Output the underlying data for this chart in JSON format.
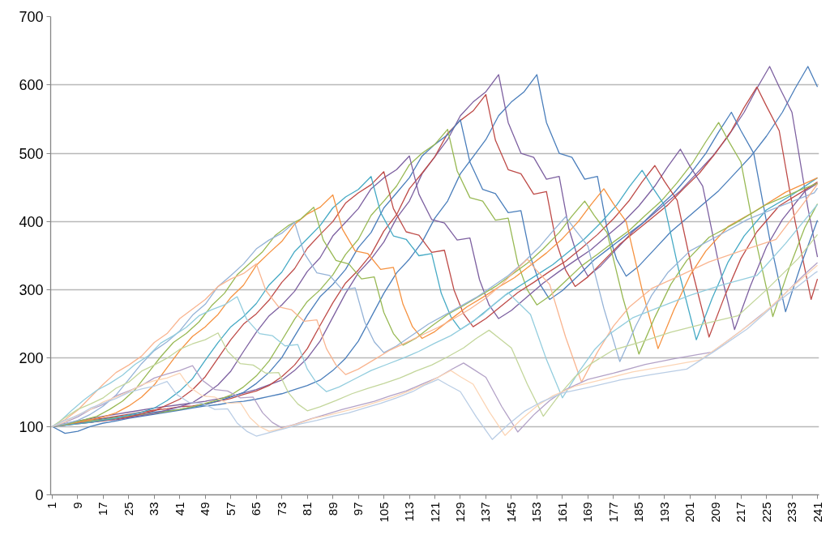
{
  "chart_data": {
    "type": "line",
    "xlim": [
      0.5,
      241.5
    ],
    "ylim": [
      0,
      700
    ],
    "xticks": [
      1,
      9,
      17,
      25,
      33,
      41,
      49,
      57,
      65,
      73,
      81,
      89,
      97,
      105,
      113,
      121,
      129,
      137,
      145,
      153,
      161,
      169,
      177,
      185,
      193,
      201,
      209,
      217,
      225,
      233,
      241
    ],
    "yticks": [
      0,
      100,
      200,
      300,
      400,
      500,
      600,
      700
    ],
    "grid": "y",
    "series": [
      {
        "color": "#4a7ebb",
        "x": [
          1,
          5,
          9,
          13,
          17,
          21,
          25,
          29,
          33,
          37,
          41,
          45,
          49,
          53,
          57,
          61,
          65,
          69,
          73,
          77,
          81,
          85,
          89,
          93,
          97,
          101,
          105,
          109,
          113,
          117,
          121,
          125,
          129,
          133,
          137,
          141,
          145,
          149,
          153,
          156,
          160,
          164,
          168,
          172,
          175,
          178,
          181,
          185,
          190,
          195,
          200,
          205,
          210,
          215,
          220,
          225,
          230,
          234,
          238,
          241
        ],
        "values": [
          100,
          90,
          93,
          100,
          105,
          108,
          112,
          115,
          118,
          121,
          124,
          127,
          130,
          132,
          135,
          137,
          140,
          144,
          148,
          154,
          160,
          168,
          182,
          200,
          225,
          260,
          295,
          325,
          345,
          370,
          405,
          430,
          470,
          495,
          520,
          555,
          575,
          590,
          615,
          545,
          500,
          494,
          462,
          466,
          390,
          345,
          320,
          335,
          360,
          385,
          405,
          425,
          445,
          470,
          495,
          525,
          560,
          595,
          627,
          597
        ]
      },
      {
        "color": "#7d60a0",
        "x": [
          1,
          9,
          17,
          25,
          33,
          41,
          49,
          57,
          65,
          73,
          77,
          81,
          85,
          89,
          93,
          97,
          101,
          105,
          109,
          113,
          117,
          121,
          125,
          129,
          133,
          137,
          141,
          144,
          148,
          152,
          156,
          160,
          163,
          166,
          169,
          173,
          178,
          183,
          188,
          193,
          198,
          203,
          208,
          213,
          218,
          222,
          226,
          229,
          233,
          238,
          241
        ],
        "values": [
          100,
          108,
          115,
          121,
          127,
          132,
          137,
          144,
          154,
          168,
          182,
          200,
          225,
          260,
          295,
          325,
          345,
          370,
          405,
          430,
          470,
          495,
          520,
          555,
          575,
          590,
          615,
          545,
          500,
          494,
          462,
          466,
          390,
          345,
          320,
          335,
          360,
          385,
          405,
          425,
          445,
          470,
          495,
          525,
          560,
          595,
          627,
          597,
          560,
          420,
          348
        ]
      },
      {
        "color": "#be4b48",
        "x": [
          1,
          5,
          9,
          13,
          17,
          21,
          25,
          29,
          33,
          37,
          41,
          45,
          49,
          53,
          57,
          61,
          65,
          69,
          73,
          77,
          81,
          85,
          89,
          93,
          97,
          101,
          105,
          109,
          113,
          117,
          121,
          125,
          129,
          133,
          137,
          140,
          144,
          148,
          152,
          156,
          159,
          162,
          165,
          169,
          174,
          179,
          184,
          189,
          194,
          199,
          204,
          209,
          214,
          218,
          222,
          225,
          229,
          234,
          239,
          241
        ],
        "values": [
          100,
          103,
          107,
          110,
          112,
          115,
          118,
          121,
          124,
          126,
          129,
          130,
          133,
          137,
          141,
          147,
          152,
          160,
          173,
          190,
          214,
          248,
          281,
          310,
          329,
          352,
          386,
          410,
          448,
          471,
          495,
          529,
          548,
          562,
          586,
          519,
          476,
          470,
          440,
          444,
          371,
          329,
          305,
          319,
          343,
          367,
          386,
          405,
          424,
          448,
          471,
          500,
          533,
          567,
          597,
          569,
          533,
          400,
          286,
          316
        ]
      },
      {
        "color": "#4a7ebb",
        "x": [
          1,
          9,
          17,
          25,
          33,
          41,
          49,
          57,
          61,
          65,
          69,
          73,
          77,
          81,
          85,
          89,
          93,
          97,
          101,
          105,
          109,
          113,
          117,
          121,
          125,
          129,
          132,
          136,
          140,
          144,
          148,
          151,
          154,
          157,
          161,
          166,
          171,
          176,
          181,
          186,
          191,
          196,
          201,
          206,
          210,
          214,
          217,
          221,
          226,
          231,
          236,
          241
        ],
        "values": [
          100,
          105,
          111,
          116,
          121,
          125,
          132,
          143,
          150,
          163,
          179,
          201,
          232,
          263,
          290,
          308,
          330,
          362,
          384,
          420,
          442,
          464,
          496,
          513,
          527,
          549,
          487,
          447,
          441,
          413,
          416,
          348,
          308,
          286,
          299,
          321,
          344,
          362,
          380,
          397,
          420,
          442,
          469,
          500,
          531,
          560,
          533,
          500,
          375,
          268,
          339,
          402
        ]
      },
      {
        "color": "#98b954",
        "x": [
          1,
          5,
          9,
          13,
          17,
          21,
          25,
          29,
          33,
          37,
          41,
          45,
          49,
          53,
          57,
          61,
          65,
          69,
          73,
          77,
          81,
          85,
          89,
          93,
          97,
          101,
          105,
          109,
          113,
          117,
          121,
          125,
          128,
          132,
          136,
          140,
          144,
          147,
          150,
          153,
          157,
          162,
          167,
          172,
          177,
          182,
          187,
          192,
          197,
          202,
          206,
          210,
          213,
          217,
          222,
          227,
          232,
          237,
          241
        ],
        "values": [
          100,
          103,
          105,
          108,
          110,
          113,
          115,
          117,
          119,
          122,
          125,
          129,
          134,
          139,
          146,
          158,
          174,
          196,
          226,
          257,
          283,
          300,
          322,
          352,
          374,
          409,
          430,
          452,
          483,
          500,
          513,
          535,
          474,
          435,
          430,
          402,
          405,
          339,
          300,
          278,
          291,
          313,
          335,
          352,
          370,
          387,
          409,
          430,
          457,
          487,
          517,
          545,
          519,
          487,
          365,
          261,
          330,
          391,
          426
        ]
      },
      {
        "color": "#7d60a0",
        "x": [
          1,
          5,
          9,
          13,
          17,
          21,
          25,
          29,
          33,
          37,
          41,
          45,
          49,
          53,
          57,
          61,
          65,
          69,
          73,
          77,
          81,
          85,
          89,
          93,
          97,
          101,
          105,
          109,
          113,
          116,
          120,
          124,
          128,
          132,
          135,
          138,
          141,
          145,
          150,
          155,
          160,
          165,
          170,
          175,
          180,
          185,
          190,
          194,
          198,
          201,
          205,
          210,
          215,
          220,
          225,
          230,
          237,
          241
        ],
        "values": [
          100,
          102,
          105,
          106,
          109,
          110,
          113,
          116,
          119,
          124,
          129,
          135,
          147,
          161,
          181,
          210,
          238,
          262,
          278,
          298,
          327,
          347,
          379,
          399,
          419,
          448,
          464,
          476,
          496,
          440,
          403,
          398,
          373,
          376,
          315,
          278,
          258,
          270,
          290,
          310,
          327,
          343,
          359,
          379,
          399,
          423,
          452,
          480,
          506,
          481,
          452,
          339,
          242,
          306,
          363,
          403,
          444,
          456
        ]
      },
      {
        "color": "#be4b48",
        "x": [
          1,
          9,
          17,
          25,
          33,
          41,
          45,
          49,
          53,
          57,
          61,
          65,
          69,
          73,
          77,
          81,
          85,
          89,
          93,
          97,
          101,
          105,
          108,
          112,
          116,
          120,
          124,
          127,
          130,
          133,
          137,
          142,
          147,
          152,
          157,
          162,
          167,
          172,
          177,
          182,
          186,
          190,
          193,
          197,
          202,
          207,
          212,
          217,
          222,
          229,
          237,
          241
        ],
        "values": [
          100,
          104,
          108,
          114,
          123,
          140,
          154,
          173,
          200,
          227,
          250,
          265,
          285,
          311,
          331,
          361,
          381,
          400,
          427,
          442,
          454,
          473,
          419,
          385,
          380,
          355,
          358,
          300,
          265,
          246,
          258,
          277,
          296,
          311,
          327,
          342,
          361,
          381,
          404,
          431,
          458,
          482,
          459,
          431,
          323,
          231,
          292,
          346,
          385,
          423,
          446,
          458
        ]
      },
      {
        "color": "#46aac5",
        "x": [
          1,
          5,
          9,
          13,
          17,
          21,
          25,
          29,
          33,
          37,
          41,
          45,
          49,
          53,
          57,
          61,
          65,
          69,
          73,
          77,
          81,
          85,
          89,
          93,
          97,
          101,
          104,
          108,
          112,
          116,
          120,
          123,
          126,
          129,
          133,
          138,
          143,
          148,
          153,
          158,
          163,
          168,
          173,
          178,
          182,
          186,
          189,
          193,
          198,
          203,
          208,
          213,
          218,
          225,
          233,
          241
        ],
        "values": [
          100,
          102,
          104,
          106,
          109,
          112,
          117,
          121,
          127,
          138,
          152,
          170,
          197,
          223,
          246,
          261,
          280,
          307,
          326,
          356,
          375,
          394,
          420,
          436,
          447,
          466,
          413,
          379,
          374,
          350,
          353,
          295,
          261,
          242,
          254,
          273,
          292,
          307,
          322,
          337,
          356,
          375,
          398,
          424,
          451,
          475,
          452,
          424,
          318,
          227,
          288,
          341,
          379,
          417,
          439,
          464
        ]
      },
      {
        "color": "#f69240",
        "x": [
          1,
          5,
          9,
          13,
          17,
          21,
          25,
          29,
          33,
          37,
          41,
          45,
          49,
          53,
          57,
          61,
          65,
          69,
          73,
          77,
          81,
          85,
          89,
          92,
          96,
          100,
          104,
          108,
          111,
          114,
          117,
          121,
          126,
          131,
          136,
          141,
          146,
          151,
          156,
          161,
          166,
          170,
          174,
          177,
          181,
          186,
          191,
          196,
          201,
          206,
          213,
          221,
          231,
          241
        ],
        "values": [
          100,
          103,
          106,
          110,
          114,
          120,
          130,
          143,
          161,
          186,
          211,
          232,
          246,
          264,
          289,
          307,
          336,
          354,
          371,
          396,
          411,
          421,
          439,
          389,
          357,
          353,
          330,
          333,
          279,
          246,
          229,
          239,
          257,
          275,
          289,
          304,
          318,
          336,
          354,
          375,
          400,
          425,
          448,
          426,
          400,
          300,
          214,
          271,
          321,
          357,
          393,
          414,
          443,
          464
        ]
      },
      {
        "color": "#98b954",
        "x": [
          1,
          7,
          11,
          15,
          19,
          23,
          27,
          31,
          35,
          39,
          43,
          47,
          51,
          55,
          59,
          63,
          67,
          71,
          75,
          79,
          83,
          86,
          90,
          94,
          98,
          102,
          105,
          108,
          111,
          115,
          120,
          125,
          130,
          135,
          140,
          145,
          150,
          155,
          160,
          164,
          168,
          171,
          175,
          180,
          185,
          190,
          195,
          200,
          207,
          215,
          225,
          235,
          241
        ],
        "values": [
          100,
          105,
          110,
          115,
          125,
          137,
          154,
          178,
          202,
          223,
          236,
          253,
          277,
          295,
          322,
          339,
          356,
          380,
          394,
          404,
          421,
          373,
          343,
          338,
          316,
          319,
          267,
          236,
          219,
          229,
          247,
          264,
          277,
          291,
          305,
          322,
          339,
          360,
          384,
          408,
          430,
          409,
          384,
          288,
          206,
          260,
          308,
          343,
          377,
          397,
          425,
          445,
          456
        ]
      },
      {
        "color": "#95b3d7",
        "x": [
          1,
          5,
          9,
          13,
          17,
          21,
          25,
          29,
          33,
          37,
          41,
          45,
          49,
          53,
          57,
          61,
          65,
          69,
          73,
          77,
          80,
          84,
          88,
          92,
          96,
          99,
          102,
          105,
          109,
          114,
          119,
          124,
          129,
          134,
          139,
          144,
          149,
          154,
          158,
          162,
          165,
          169,
          174,
          179,
          184,
          189,
          194,
          201,
          209,
          219,
          229,
          240,
          241
        ],
        "values": [
          100,
          104,
          109,
          118,
          130,
          146,
          169,
          192,
          211,
          224,
          240,
          263,
          279,
          305,
          321,
          338,
          360,
          373,
          383,
          399,
          354,
          325,
          321,
          300,
          303,
          253,
          224,
          208,
          218,
          234,
          250,
          263,
          276,
          289,
          305,
          321,
          341,
          364,
          386,
          407,
          388,
          364,
          273,
          195,
          247,
          292,
          325,
          357,
          377,
          403,
          422,
          442,
          449
        ]
      },
      {
        "color": "#f9b590",
        "x": [
          1,
          5,
          9,
          13,
          17,
          21,
          25,
          29,
          33,
          37,
          41,
          45,
          49,
          53,
          57,
          61,
          65,
          68,
          72,
          76,
          80,
          84,
          87,
          90,
          93,
          97,
          102,
          107,
          112,
          117,
          122,
          127,
          132,
          137,
          142,
          146,
          150,
          153,
          157,
          162,
          167,
          172,
          177,
          182,
          189,
          197,
          207,
          217,
          228,
          237,
          241
        ],
        "values": [
          100,
          110,
          124,
          143,
          162,
          179,
          190,
          203,
          223,
          236,
          258,
          272,
          286,
          305,
          316,
          324,
          338,
          299,
          275,
          271,
          254,
          256,
          214,
          190,
          176,
          184,
          198,
          212,
          223,
          234,
          245,
          258,
          272,
          288,
          308,
          327,
          345,
          328,
          308,
          231,
          165,
          209,
          247,
          275,
          302,
          319,
          341,
          357,
          374,
          429,
          455
        ]
      },
      {
        "color": "#93cdde",
        "x": [
          1,
          3,
          7,
          11,
          15,
          19,
          23,
          27,
          31,
          35,
          39,
          43,
          47,
          51,
          55,
          59,
          62,
          66,
          70,
          74,
          78,
          81,
          84,
          87,
          91,
          96,
          101,
          106,
          111,
          116,
          121,
          126,
          131,
          136,
          140,
          144,
          147,
          151,
          156,
          161,
          166,
          171,
          176,
          183,
          191,
          201,
          211,
          222,
          231,
          241
        ],
        "values": [
          100,
          106,
          123,
          139,
          153,
          163,
          175,
          191,
          203,
          222,
          233,
          245,
          262,
          271,
          278,
          290,
          257,
          236,
          233,
          218,
          220,
          184,
          163,
          151,
          158,
          170,
          182,
          191,
          200,
          210,
          222,
          233,
          248,
          264,
          281,
          296,
          282,
          264,
          198,
          142,
          179,
          212,
          236,
          259,
          274,
          292,
          307,
          321,
          368,
          425
        ]
      },
      {
        "color": "#c3d69b",
        "x": [
          1,
          5,
          9,
          13,
          17,
          21,
          25,
          29,
          33,
          37,
          41,
          45,
          49,
          53,
          56,
          60,
          64,
          68,
          72,
          75,
          78,
          81,
          85,
          90,
          95,
          100,
          105,
          110,
          115,
          120,
          125,
          130,
          134,
          138,
          141,
          145,
          150,
          155,
          160,
          165,
          170,
          177,
          185,
          195,
          205,
          216,
          225,
          235,
          241
        ],
        "values": [
          100,
          113,
          125,
          133,
          142,
          156,
          165,
          181,
          190,
          200,
          213,
          221,
          227,
          237,
          210,
          192,
          190,
          178,
          179,
          150,
          133,
          123,
          129,
          138,
          148,
          156,
          163,
          171,
          181,
          190,
          202,
          215,
          229,
          241,
          230,
          215,
          162,
          115,
          146,
          173,
          192,
          212,
          223,
          238,
          250,
          262,
          300,
          346,
          381
        ]
      },
      {
        "color": "#b3a2c7",
        "x": [
          1,
          5,
          9,
          13,
          17,
          21,
          25,
          29,
          33,
          37,
          41,
          45,
          48,
          52,
          56,
          60,
          64,
          67,
          70,
          73,
          77,
          82,
          87,
          92,
          97,
          102,
          107,
          112,
          117,
          122,
          126,
          130,
          133,
          137,
          142,
          147,
          152,
          157,
          162,
          169,
          177,
          187,
          197,
          208,
          217,
          227,
          237,
          241
        ],
        "values": [
          100,
          106,
          114,
          125,
          132,
          145,
          152,
          160,
          171,
          177,
          182,
          189,
          168,
          154,
          152,
          142,
          143,
          120,
          106,
          98,
          103,
          111,
          118,
          125,
          131,
          137,
          145,
          152,
          162,
          172,
          183,
          193,
          184,
          172,
          129,
          92,
          117,
          138,
          154,
          169,
          178,
          191,
          200,
          209,
          240,
          277,
          323,
          340
        ]
      },
      {
        "color": "#fcd5b5",
        "x": [
          1,
          5,
          9,
          13,
          17,
          21,
          25,
          29,
          33,
          37,
          41,
          44,
          48,
          52,
          56,
          60,
          63,
          66,
          69,
          73,
          78,
          83,
          88,
          93,
          98,
          103,
          108,
          113,
          118,
          122,
          126,
          129,
          133,
          138,
          143,
          148,
          153,
          158,
          165,
          173,
          183,
          193,
          204,
          213,
          223,
          233,
          241
        ],
        "values": [
          100,
          107,
          117,
          125,
          136,
          143,
          151,
          161,
          167,
          171,
          178,
          158,
          145,
          143,
          134,
          135,
          113,
          100,
          93,
          97,
          104,
          112,
          117,
          123,
          129,
          136,
          143,
          152,
          162,
          172,
          182,
          173,
          162,
          122,
          87,
          110,
          130,
          145,
          159,
          168,
          180,
          188,
          197,
          226,
          261,
          304,
          336
        ]
      },
      {
        "color": "#b9cde5",
        "x": [
          1,
          5,
          9,
          13,
          17,
          21,
          25,
          29,
          33,
          37,
          40,
          44,
          48,
          52,
          56,
          59,
          62,
          65,
          69,
          74,
          79,
          84,
          89,
          94,
          99,
          104,
          109,
          114,
          118,
          122,
          125,
          129,
          134,
          139,
          144,
          149,
          154,
          161,
          169,
          179,
          189,
          200,
          209,
          219,
          229,
          240,
          241
        ],
        "values": [
          100,
          109,
          116,
          127,
          134,
          141,
          150,
          155,
          159,
          166,
          147,
          135,
          134,
          125,
          126,
          105,
          93,
          86,
          91,
          97,
          104,
          109,
          115,
          120,
          127,
          134,
          142,
          151,
          161,
          169,
          161,
          151,
          114,
          81,
          103,
          122,
          135,
          149,
          157,
          168,
          176,
          184,
          211,
          243,
          284,
          324,
          327
        ]
      }
    ]
  }
}
